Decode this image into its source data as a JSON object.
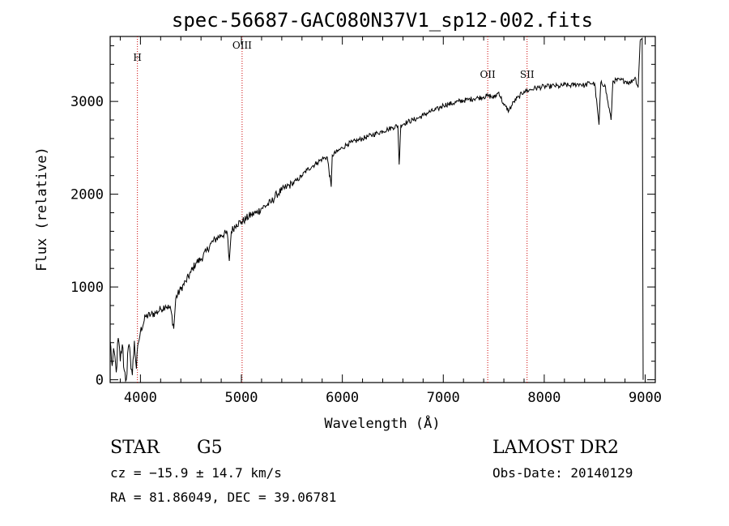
{
  "chart_data": {
    "type": "line",
    "title": "spec-56687-GAC080N37V1_sp12-002.fits",
    "xlabel": "Wavelength (Å)",
    "ylabel": "Flux (relative)",
    "xlim": [
      3700,
      9100
    ],
    "ylim": [
      -30,
      3700
    ],
    "x_ticks": [
      4000,
      5000,
      6000,
      7000,
      8000,
      9000
    ],
    "x_tick_labels": [
      "4000",
      "5000",
      "6000",
      "7000",
      "8000",
      "9000"
    ],
    "y_ticks": [
      0,
      1000,
      2000,
      3000
    ],
    "y_tick_labels": [
      "0",
      "1000",
      "2000",
      "3000"
    ],
    "series": [
      {
        "x": [
          3700,
          3720,
          3740,
          3760,
          3780,
          3800,
          3820,
          3840,
          3860,
          3880,
          3900,
          3920,
          3940,
          3960,
          3980,
          4000,
          4050,
          4100,
          4150,
          4200,
          4250,
          4300,
          4330,
          4350,
          4400,
          4450,
          4500,
          4550,
          4600,
          4650,
          4700,
          4750,
          4800,
          4860,
          4880,
          4900,
          4950,
          5000,
          5050,
          5100,
          5150,
          5200,
          5250,
          5300,
          5350,
          5400,
          5450,
          5500,
          5550,
          5600,
          5650,
          5700,
          5750,
          5800,
          5850,
          5890,
          5900,
          5950,
          6000,
          6050,
          6100,
          6150,
          6200,
          6250,
          6300,
          6350,
          6400,
          6450,
          6500,
          6550,
          6563,
          6580,
          6650,
          6700,
          6750,
          6800,
          6850,
          6900,
          6950,
          7000,
          7050,
          7100,
          7150,
          7200,
          7250,
          7300,
          7350,
          7400,
          7450,
          7500,
          7550,
          7600,
          7650,
          7700,
          7750,
          7800,
          7850,
          7900,
          7950,
          8000,
          8050,
          8100,
          8150,
          8200,
          8250,
          8300,
          8350,
          8400,
          8450,
          8500,
          8542,
          8560,
          8600,
          8662,
          8680,
          8750,
          8800,
          8850,
          8900,
          8930,
          8950,
          8970,
          8980
        ],
        "values": [
          420,
          150,
          300,
          80,
          450,
          200,
          380,
          100,
          0,
          350,
          250,
          50,
          420,
          120,
          400,
          520,
          680,
          700,
          720,
          760,
          800,
          760,
          550,
          880,
          980,
          1060,
          1160,
          1260,
          1300,
          1380,
          1470,
          1520,
          1560,
          1580,
          1280,
          1600,
          1680,
          1700,
          1740,
          1780,
          1800,
          1850,
          1880,
          1920,
          2000,
          2040,
          2080,
          2110,
          2150,
          2200,
          2260,
          2300,
          2340,
          2380,
          2400,
          2080,
          2420,
          2460,
          2500,
          2540,
          2560,
          2580,
          2600,
          2620,
          2640,
          2660,
          2680,
          2700,
          2720,
          2740,
          2320,
          2750,
          2780,
          2800,
          2820,
          2850,
          2880,
          2900,
          2920,
          2960,
          2970,
          2980,
          3000,
          3010,
          3020,
          3030,
          3040,
          3050,
          3060,
          3040,
          3100,
          2960,
          2900,
          3000,
          3050,
          3110,
          3120,
          3140,
          3150,
          3160,
          3160,
          3170,
          3160,
          3180,
          3170,
          3180,
          3190,
          3170,
          3200,
          3190,
          2750,
          3200,
          3180,
          2800,
          3220,
          3230,
          3220,
          3200,
          3260,
          3150,
          3650,
          3680,
          0
        ]
      }
    ],
    "line_markers": [
      {
        "label": "H",
        "x": 3970
      },
      {
        "label": "OIII",
        "x": 5007
      },
      {
        "label": "OII",
        "x": 7440
      },
      {
        "label": "SII",
        "x": 7830
      }
    ],
    "grid": false,
    "legend": "none"
  },
  "info": {
    "object_class": "STAR",
    "subclass": "G5",
    "survey": "LAMOST DR2",
    "cz": "cz = −15.9 ± 14.7 km/s",
    "obs_date": "Obs-Date: 20140129",
    "coords": "RA =  81.86049, DEC =  39.06781"
  },
  "colors": {
    "spectrum": "#000000",
    "marker_line": "#cc0000",
    "axes": "#000000"
  }
}
